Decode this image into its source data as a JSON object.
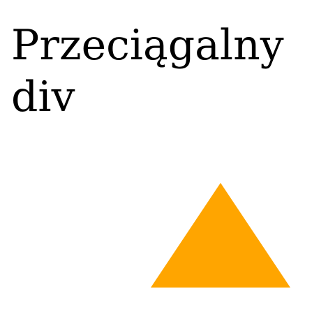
{
  "page": {
    "title": "Przeciągalny div"
  },
  "draggable": {
    "shape": "triangle",
    "color": "#ffa500"
  }
}
